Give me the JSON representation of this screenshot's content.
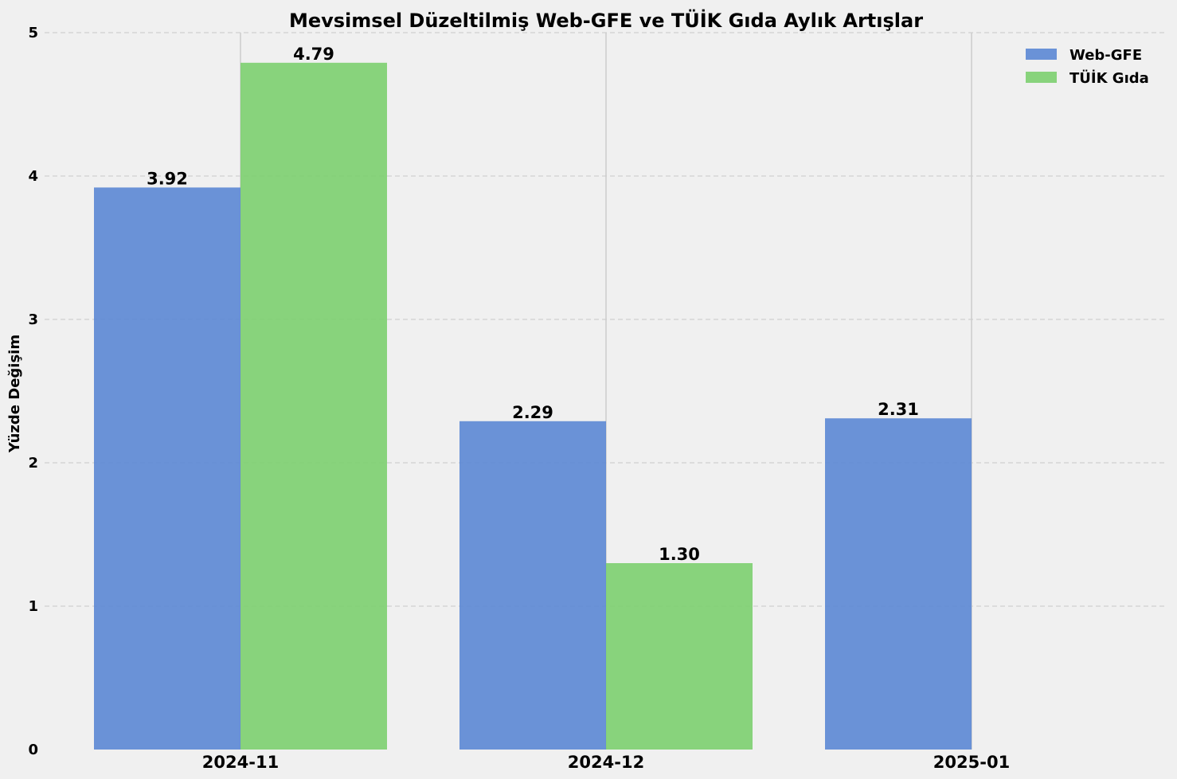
{
  "chart_data": {
    "type": "bar",
    "title": "Mevsimsel Düzeltilmiş Web-GFE ve TÜİK Gıda Aylık Artışlar",
    "xlabel": "",
    "ylabel": "Yüzde Değişim",
    "categories": [
      "2024-11",
      "2024-12",
      "2025-01"
    ],
    "series": [
      {
        "name": "Web-GFE",
        "values": [
          3.92,
          2.29,
          2.31
        ],
        "labels": [
          "3.92",
          "2.29",
          "2.31"
        ],
        "color": "#5b87d4"
      },
      {
        "name": "TÜİK Gıda",
        "values": [
          4.79,
          1.3,
          null
        ],
        "labels": [
          "4.79",
          "1.30",
          null
        ],
        "color": "#7ccf6f"
      }
    ],
    "ylim": [
      0,
      5
    ],
    "yticks": [
      "0",
      "1",
      "2",
      "3",
      "4",
      "5"
    ],
    "grid": true,
    "legend": "top-right"
  }
}
